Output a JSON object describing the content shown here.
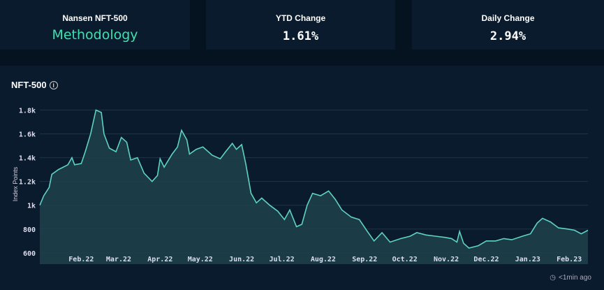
{
  "cards": [
    {
      "label": "Nansen NFT-500",
      "link": "Methodology"
    },
    {
      "label": "YTD Change",
      "value": "1.61%"
    },
    {
      "label": "Daily Change",
      "value": "2.94%"
    }
  ],
  "chart_title": "NFT-500",
  "updated": "<1min ago",
  "colors": {
    "line": "#5fd3c2",
    "fill": "#1d3f4a",
    "link": "#3fe0b0"
  },
  "chart_data": {
    "type": "area",
    "ylabel": "Index Points",
    "ylim": [
      505,
      1850
    ],
    "yticks": [
      600,
      800,
      1000,
      1200,
      1400,
      1600,
      1800
    ],
    "ytick_labels": [
      "600",
      "800",
      "1k",
      "1.2k",
      "1.4k",
      "1.6k",
      "1.8k"
    ],
    "xticks": [
      "2022-02-01",
      "2022-03-01",
      "2022-04-01",
      "2022-05-01",
      "2022-06-01",
      "2022-07-01",
      "2022-08-01",
      "2022-09-01",
      "2022-10-01",
      "2022-11-01",
      "2022-12-01",
      "2023-01-01",
      "2023-02-01"
    ],
    "xtick_labels": [
      "Feb.22",
      "Mar.22",
      "Apr.22",
      "May.22",
      "Jun.22",
      "Jul.22",
      "Aug.22",
      "Sep.22",
      "Oct.22",
      "Nov.22",
      "Dec.22",
      "Jan.23",
      "Feb.23"
    ],
    "grid": true,
    "x": [
      "2022-01-01",
      "2022-01-04",
      "2022-01-08",
      "2022-01-10",
      "2022-01-15",
      "2022-01-22",
      "2022-01-25",
      "2022-01-27",
      "2022-02-01",
      "2022-02-04",
      "2022-02-08",
      "2022-02-12",
      "2022-02-16",
      "2022-02-18",
      "2022-02-22",
      "2022-02-27",
      "2022-03-03",
      "2022-03-07",
      "2022-03-10",
      "2022-03-15",
      "2022-03-20",
      "2022-03-26",
      "2022-03-30",
      "2022-04-01",
      "2022-04-04",
      "2022-04-10",
      "2022-04-14",
      "2022-04-17",
      "2022-04-21",
      "2022-04-23",
      "2022-04-28",
      "2022-05-03",
      "2022-05-10",
      "2022-05-16",
      "2022-05-20",
      "2022-05-25",
      "2022-05-28",
      "2022-06-01",
      "2022-06-04",
      "2022-06-08",
      "2022-06-12",
      "2022-06-16",
      "2022-06-22",
      "2022-06-28",
      "2022-07-03",
      "2022-07-07",
      "2022-07-12",
      "2022-07-16",
      "2022-07-20",
      "2022-07-24",
      "2022-07-30",
      "2022-08-05",
      "2022-08-10",
      "2022-08-15",
      "2022-08-22",
      "2022-08-28",
      "2022-09-03",
      "2022-09-08",
      "2022-09-14",
      "2022-09-20",
      "2022-09-28",
      "2022-10-05",
      "2022-10-10",
      "2022-10-17",
      "2022-10-24",
      "2022-10-31",
      "2022-11-05",
      "2022-11-09",
      "2022-11-11",
      "2022-11-14",
      "2022-11-18",
      "2022-11-25",
      "2022-12-01",
      "2022-12-08",
      "2022-12-14",
      "2022-12-20",
      "2022-12-28",
      "2023-01-03",
      "2023-01-08",
      "2023-01-12",
      "2023-01-18",
      "2023-01-24",
      "2023-01-31",
      "2023-02-05",
      "2023-02-10",
      "2023-02-15"
    ],
    "values": [
      1000,
      1080,
      1150,
      1260,
      1300,
      1340,
      1400,
      1340,
      1350,
      1450,
      1600,
      1800,
      1780,
      1600,
      1480,
      1450,
      1570,
      1530,
      1380,
      1400,
      1270,
      1200,
      1250,
      1390,
      1320,
      1430,
      1490,
      1630,
      1550,
      1430,
      1470,
      1490,
      1420,
      1390,
      1450,
      1520,
      1470,
      1510,
      1350,
      1100,
      1020,
      1060,
      1000,
      950,
      880,
      960,
      820,
      840,
      1000,
      1100,
      1080,
      1120,
      1050,
      960,
      900,
      880,
      780,
      700,
      770,
      690,
      720,
      740,
      770,
      750,
      740,
      730,
      720,
      690,
      780,
      680,
      640,
      660,
      700,
      700,
      720,
      710,
      740,
      760,
      850,
      890,
      860,
      810,
      800,
      790,
      760,
      790
    ]
  }
}
